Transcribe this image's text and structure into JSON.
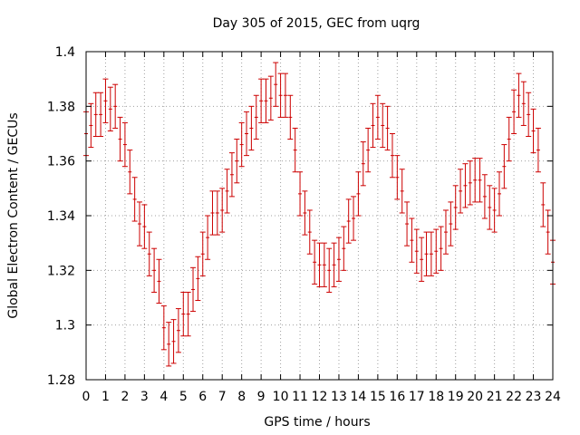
{
  "chart_data": {
    "type": "scatter",
    "title": "Day 305 of 2015, GEC from uqrg",
    "xlabel": "GPS time / hours",
    "ylabel": "Global Electron Content / GECUs",
    "xlim": [
      0,
      24
    ],
    "ylim": [
      1.28,
      1.4
    ],
    "xticks": [
      "0",
      "1",
      "2",
      "3",
      "4",
      "5",
      "6",
      "7",
      "8",
      "9",
      "10",
      "11",
      "12",
      "13",
      "14",
      "15",
      "16",
      "17",
      "18",
      "19",
      "20",
      "21",
      "22",
      "23",
      "24"
    ],
    "yticks": [
      "1.28",
      "1.3",
      "1.32",
      "1.34",
      "1.36",
      "1.38",
      "1.4"
    ],
    "grid": true,
    "error_bars": true,
    "color": "#cc0000",
    "series": [
      {
        "x": [
          0.0,
          0.25,
          0.5,
          0.75,
          1.0,
          1.25,
          1.5,
          1.75,
          2.0,
          2.25,
          2.5,
          2.75,
          3.0,
          3.25,
          3.5,
          3.75,
          4.0,
          4.25,
          4.5,
          4.75,
          5.0,
          5.25,
          5.5,
          5.75,
          6.0,
          6.25,
          6.5,
          6.75,
          7.0,
          7.25,
          7.5,
          7.75,
          8.0,
          8.25,
          8.5,
          8.75,
          9.0,
          9.25,
          9.5,
          9.75,
          10.0,
          10.25,
          10.5,
          10.75,
          11.0,
          11.25,
          11.5,
          11.75,
          12.0,
          12.25,
          12.5,
          12.75,
          13.0,
          13.25,
          13.5,
          13.75,
          14.0,
          14.25,
          14.5,
          14.75,
          15.0,
          15.25,
          15.5,
          15.75,
          16.0,
          16.25,
          16.5,
          16.75,
          17.0,
          17.25,
          17.5,
          17.75,
          18.0,
          18.25,
          18.5,
          18.75,
          19.0,
          19.25,
          19.5,
          19.75,
          20.0,
          20.25,
          20.5,
          20.75,
          21.0,
          21.25,
          21.5,
          21.75,
          22.0,
          22.25,
          22.5,
          22.75,
          23.0,
          23.25,
          23.5,
          23.75,
          24.0
        ],
        "y": [
          1.37,
          1.373,
          1.377,
          1.377,
          1.382,
          1.379,
          1.38,
          1.368,
          1.366,
          1.356,
          1.346,
          1.337,
          1.336,
          1.326,
          1.32,
          1.316,
          1.299,
          1.293,
          1.294,
          1.298,
          1.304,
          1.304,
          1.313,
          1.317,
          1.326,
          1.332,
          1.341,
          1.341,
          1.342,
          1.349,
          1.355,
          1.36,
          1.366,
          1.37,
          1.372,
          1.376,
          1.382,
          1.382,
          1.383,
          1.388,
          1.384,
          1.384,
          1.376,
          1.364,
          1.348,
          1.341,
          1.334,
          1.323,
          1.322,
          1.322,
          1.32,
          1.322,
          1.324,
          1.328,
          1.338,
          1.339,
          1.348,
          1.359,
          1.364,
          1.373,
          1.376,
          1.373,
          1.372,
          1.362,
          1.354,
          1.349,
          1.337,
          1.331,
          1.327,
          1.324,
          1.326,
          1.326,
          1.327,
          1.328,
          1.334,
          1.337,
          1.343,
          1.349,
          1.351,
          1.352,
          1.353,
          1.353,
          1.347,
          1.343,
          1.342,
          1.348,
          1.358,
          1.368,
          1.378,
          1.384,
          1.381,
          1.377,
          1.371,
          1.364,
          1.344,
          1.334,
          1.323
        ],
        "yerr": [
          0.008,
          0.008,
          0.008,
          0.008,
          0.008,
          0.008,
          0.008,
          0.008,
          0.008,
          0.008,
          0.008,
          0.008,
          0.008,
          0.008,
          0.008,
          0.008,
          0.008,
          0.008,
          0.008,
          0.008,
          0.008,
          0.008,
          0.008,
          0.008,
          0.008,
          0.008,
          0.008,
          0.008,
          0.008,
          0.008,
          0.008,
          0.008,
          0.008,
          0.008,
          0.008,
          0.008,
          0.008,
          0.008,
          0.008,
          0.008,
          0.008,
          0.008,
          0.008,
          0.008,
          0.008,
          0.008,
          0.008,
          0.008,
          0.008,
          0.008,
          0.008,
          0.008,
          0.008,
          0.008,
          0.008,
          0.008,
          0.008,
          0.008,
          0.008,
          0.008,
          0.008,
          0.008,
          0.008,
          0.008,
          0.008,
          0.008,
          0.008,
          0.008,
          0.008,
          0.008,
          0.008,
          0.008,
          0.008,
          0.008,
          0.008,
          0.008,
          0.008,
          0.008,
          0.008,
          0.008,
          0.008,
          0.008,
          0.008,
          0.008,
          0.008,
          0.008,
          0.008,
          0.008,
          0.008,
          0.008,
          0.008,
          0.008,
          0.008,
          0.008,
          0.008,
          0.008,
          0.008
        ]
      }
    ]
  }
}
